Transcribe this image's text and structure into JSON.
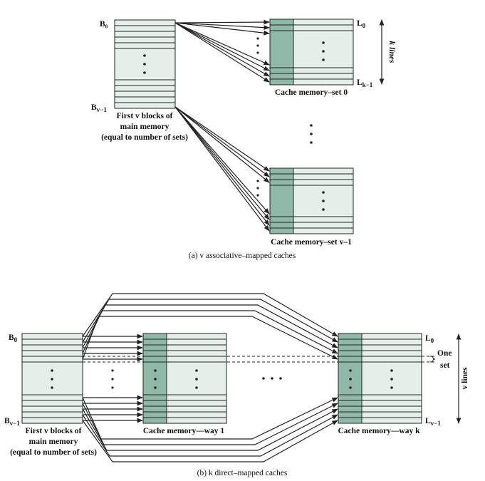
{
  "top": {
    "main_block_top": "B₀",
    "main_block_bottom": "B",
    "main_block_bottom_sub": "v−1",
    "main_desc": [
      "First v blocks of",
      "main memory",
      "(equal to number of sets)"
    ],
    "set0_line_top": "L",
    "set0_line_top_sub": "0",
    "set0_line_bottom": "L",
    "set0_line_bottom_sub": "k−1",
    "set0_caption": "Cache memory–set 0",
    "setv_caption": "Cache memory–set v–1",
    "k_lines": "k lines",
    "caption": "(a) v associative–mapped caches"
  },
  "bottom": {
    "main_block_top": "B",
    "main_block_top_sub": "0",
    "main_block_bottom": "B",
    "main_block_bottom_sub": "v−1",
    "main_desc": [
      "First v blocks of",
      "main memory",
      "(equal to number of sets)"
    ],
    "way1_caption": "Cache memory—way 1",
    "wayk_caption": "Cache memory—way k",
    "line_top": "L",
    "line_top_sub": "0",
    "line_bottom": "L",
    "line_bottom_sub": "v−1",
    "one_set": [
      "One",
      "set"
    ],
    "v_lines": "v lines",
    "caption": "(b) k direct–mapped caches"
  },
  "colors": {
    "fill": "#e6eeea",
    "accent": "#8fb8a6",
    "stroke": "#222222"
  }
}
